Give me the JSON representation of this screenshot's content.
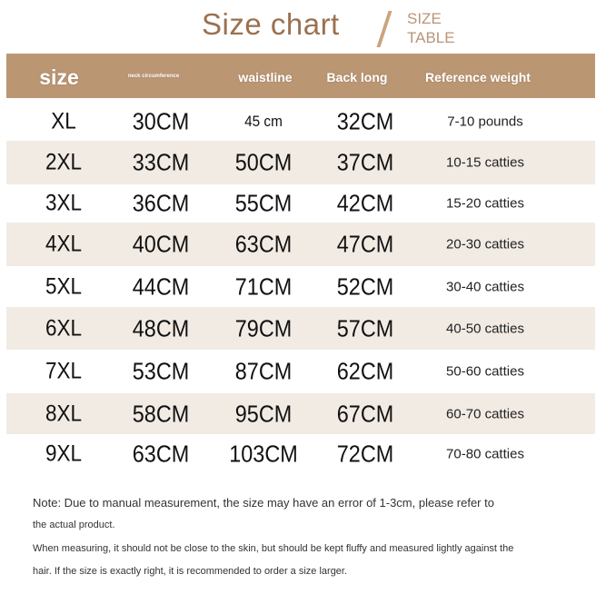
{
  "title": "Size chart",
  "subtitle_line1": "SIZE",
  "subtitle_line2": "TABLE",
  "colors": {
    "header_band": "#ba9673",
    "title": "#9a7150",
    "alt_row": "#f1ebe4"
  },
  "headers": {
    "size": "size",
    "neck": "neck circumference",
    "waist": "waistline",
    "back": "Back long",
    "weight": "Reference weight"
  },
  "rows": [
    {
      "size": "XL",
      "neck": "30CM",
      "waist": "45 cm",
      "back": "32CM",
      "weight": "7-10 pounds"
    },
    {
      "size": "2XL",
      "neck": "33CM",
      "waist": "50CM",
      "back": "37CM",
      "weight": "10-15 catties"
    },
    {
      "size": "3XL",
      "neck": "36CM",
      "waist": "55CM",
      "back": "42CM",
      "weight": "15-20 catties"
    },
    {
      "size": "4XL",
      "neck": "40CM",
      "waist": "63CM",
      "back": "47CM",
      "weight": "20-30 catties"
    },
    {
      "size": "5XL",
      "neck": "44CM",
      "waist": "71CM",
      "back": "52CM",
      "weight": "30-40 catties"
    },
    {
      "size": "6XL",
      "neck": "48CM",
      "waist": "79CM",
      "back": "57CM",
      "weight": "40-50 catties"
    },
    {
      "size": "7XL",
      "neck": "53CM",
      "waist": "87CM",
      "back": "62CM",
      "weight": "50-60 catties"
    },
    {
      "size": "8XL",
      "neck": "58CM",
      "waist": "95CM",
      "back": "67CM",
      "weight": "60-70 catties"
    },
    {
      "size": "9XL",
      "neck": "63CM",
      "waist": "103CM",
      "back": "72CM",
      "weight": "70-80 catties"
    }
  ],
  "notes": [
    "Note: Due to manual measurement, the size may have an error of 1-3cm, please refer to",
    "the actual product.",
    "When measuring, it should not be close to the skin, but should be kept fluffy and measured lightly against the",
    "hair. If the size is exactly right, it is recommended to order a size larger."
  ]
}
